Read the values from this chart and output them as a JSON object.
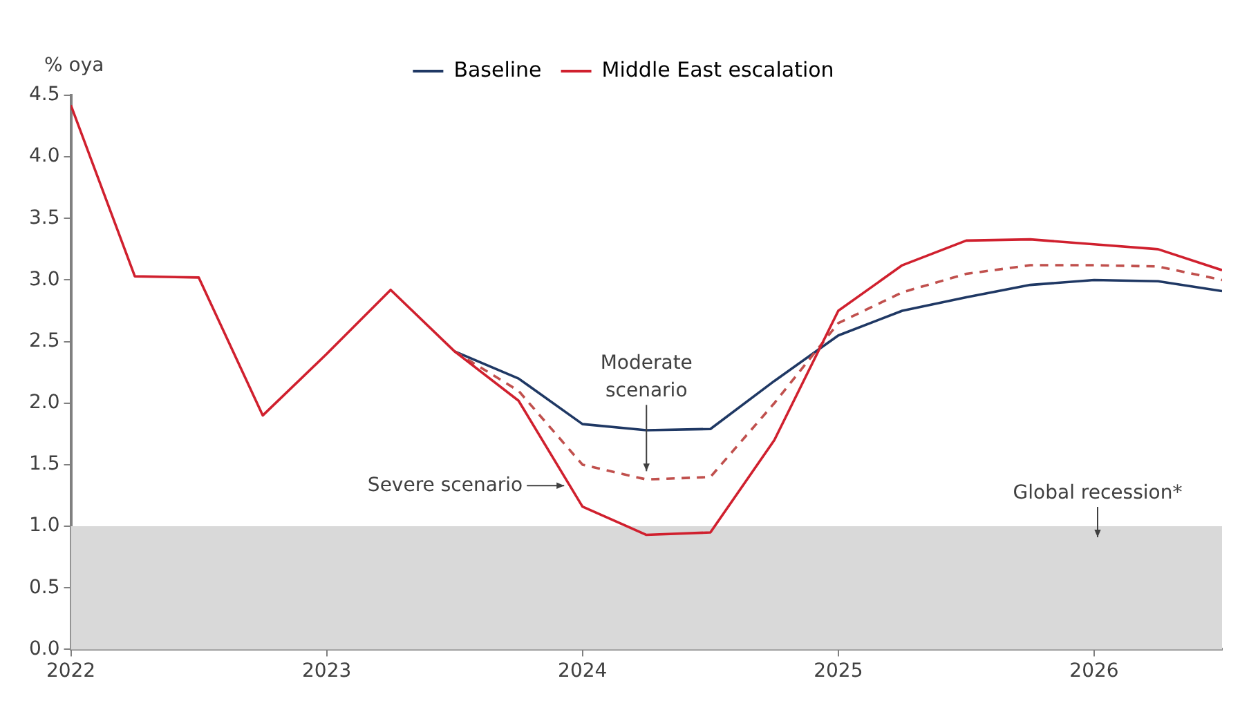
{
  "chart_data": {
    "type": "line",
    "ylabel": "% oya",
    "x": [
      2022,
      2022.25,
      2022.5,
      2022.75,
      2023,
      2023.25,
      2023.5,
      2023.75,
      2024,
      2024.25,
      2024.5,
      2024.75,
      2025,
      2025.25,
      2025.5,
      2025.75,
      2026,
      2026.25,
      2026.5
    ],
    "series": [
      {
        "name": "Baseline",
        "color": "#1f3864",
        "line_style": "solid",
        "values": [
          null,
          null,
          null,
          null,
          null,
          null,
          2.42,
          2.2,
          1.83,
          1.78,
          1.79,
          2.18,
          2.55,
          2.75,
          2.86,
          2.96,
          3.0,
          2.99,
          2.91
        ]
      },
      {
        "color": "#c0504d",
        "line_style": "dashed",
        "values": [
          null,
          null,
          null,
          null,
          null,
          null,
          2.42,
          2.1,
          1.5,
          1.38,
          1.4,
          2.0,
          2.65,
          2.9,
          3.05,
          3.12,
          3.12,
          3.11,
          3.0
        ]
      },
      {
        "name": "Middle East escalation",
        "color": "#d0202e",
        "line_style": "solid",
        "values": [
          4.42,
          3.03,
          3.02,
          1.9,
          2.4,
          2.92,
          2.42,
          2.02,
          1.16,
          0.93,
          0.95,
          1.7,
          2.75,
          3.12,
          3.32,
          3.33,
          3.29,
          3.25,
          3.08
        ]
      }
    ],
    "xlim": [
      2022,
      2026.5
    ],
    "xticks": [
      2022,
      2023,
      2024,
      2025,
      2026
    ],
    "ylim": [
      0,
      4.5
    ],
    "yticks": [
      {
        "value": 0,
        "label": "0.0"
      },
      0.5,
      {
        "value": 1,
        "label": "1.0"
      },
      1.5,
      {
        "value": 2,
        "label": "2.0"
      },
      2.5,
      {
        "value": 3,
        "label": "3.0"
      },
      3.5,
      {
        "value": 4,
        "label": "4.0"
      },
      4.5
    ],
    "bands": [
      {
        "axis": "y",
        "from": 0,
        "to": 1,
        "label": "Global recession*",
        "color": "#d9d9d9"
      }
    ],
    "annotations": [
      {
        "text": "Moderate scenario",
        "x": 2024.25,
        "y": 1.38
      },
      {
        "text": "Severe scenario",
        "x": 2023.95,
        "y": 1.33
      }
    ],
    "grid": false,
    "legend": "top",
    "marker": "none"
  }
}
